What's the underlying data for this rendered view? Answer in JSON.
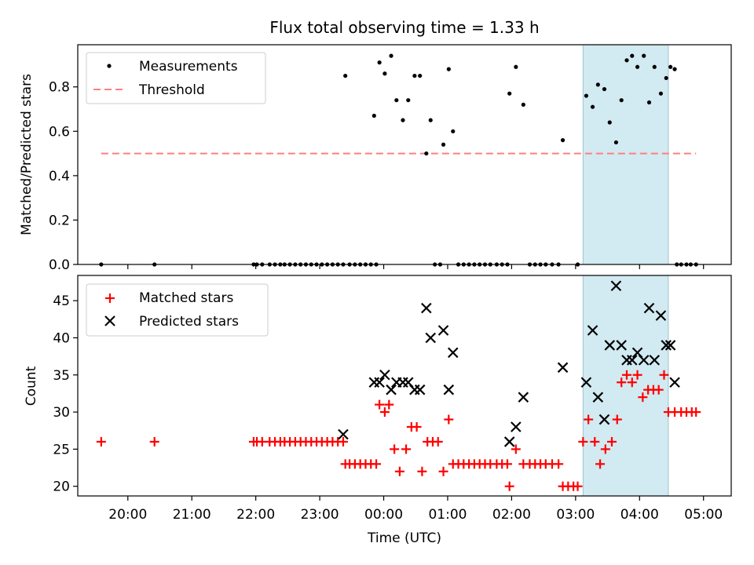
{
  "chart_data": [
    {
      "type": "scatter",
      "title": "Flux total observing time = 1.33 h",
      "ylabel": "Matched/Predicted stars",
      "ylim": [
        0,
        0.99
      ],
      "yticks": [
        "0.0",
        "0.2",
        "0.4",
        "0.6",
        "0.8"
      ],
      "xlim": [
        "19:13",
        "05:26"
      ],
      "highlight": {
        "start": "03:07",
        "end": "04:27",
        "color": "#add8e6"
      },
      "legend": {
        "position": "top-left",
        "entries": [
          {
            "label": "Measurements",
            "marker": "dot",
            "color": "#000000"
          },
          {
            "label": "Threshold",
            "marker": "dashed-line",
            "color": "#ff7f7f"
          }
        ]
      },
      "threshold": {
        "y": 0.5,
        "x": [
          "19:35",
          "04:53"
        ]
      },
      "series": [
        {
          "name": "Measurements",
          "points": [
            [
              "19:35",
              0
            ],
            [
              "20:25",
              0
            ],
            [
              "21:58",
              0
            ],
            [
              "22:01",
              0
            ],
            [
              "22:06",
              0
            ],
            [
              "22:13",
              0
            ],
            [
              "22:18",
              0
            ],
            [
              "22:23",
              0
            ],
            [
              "22:27",
              0
            ],
            [
              "22:32",
              0
            ],
            [
              "22:37",
              0
            ],
            [
              "22:42",
              0
            ],
            [
              "22:47",
              0
            ],
            [
              "22:52",
              0
            ],
            [
              "22:57",
              0
            ],
            [
              "23:02",
              0
            ],
            [
              "23:07",
              0
            ],
            [
              "23:12",
              0
            ],
            [
              "23:17",
              0
            ],
            [
              "23:22",
              0
            ],
            [
              "23:24",
              0.85
            ],
            [
              "23:28",
              0
            ],
            [
              "23:33",
              0
            ],
            [
              "23:38",
              0
            ],
            [
              "23:43",
              0
            ],
            [
              "23:48",
              0
            ],
            [
              "23:51",
              0.67
            ],
            [
              "23:53",
              0
            ],
            [
              "23:56",
              0.91
            ],
            [
              "00:01",
              0.86
            ],
            [
              "00:07",
              0.94
            ],
            [
              "00:12",
              0.74
            ],
            [
              "00:18",
              0.65
            ],
            [
              "00:23",
              0.74
            ],
            [
              "00:29",
              0.85
            ],
            [
              "00:34",
              0.85
            ],
            [
              "00:40",
              0.5
            ],
            [
              "00:44",
              0.65
            ],
            [
              "00:48",
              0
            ],
            [
              "00:53",
              0
            ],
            [
              "00:56",
              0.54
            ],
            [
              "01:01",
              0.88
            ],
            [
              "01:05",
              0.6
            ],
            [
              "01:10",
              0
            ],
            [
              "01:15",
              0
            ],
            [
              "01:20",
              0
            ],
            [
              "01:25",
              0
            ],
            [
              "01:30",
              0
            ],
            [
              "01:35",
              0
            ],
            [
              "01:40",
              0
            ],
            [
              "01:46",
              0
            ],
            [
              "01:51",
              0
            ],
            [
              "01:56",
              0
            ],
            [
              "01:58",
              0.77
            ],
            [
              "02:04",
              0.89
            ],
            [
              "02:11",
              0.72
            ],
            [
              "02:17",
              0
            ],
            [
              "02:22",
              0
            ],
            [
              "02:27",
              0
            ],
            [
              "02:32",
              0
            ],
            [
              "02:38",
              0
            ],
            [
              "02:44",
              0
            ],
            [
              "02:48",
              0.56
            ],
            [
              "03:02",
              0
            ],
            [
              "03:10",
              0.76
            ],
            [
              "03:16",
              0.71
            ],
            [
              "03:21",
              0.81
            ],
            [
              "03:27",
              0.79
            ],
            [
              "03:32",
              0.64
            ],
            [
              "03:38",
              0.55
            ],
            [
              "03:43",
              0.74
            ],
            [
              "03:48",
              0.92
            ],
            [
              "03:53",
              0.94
            ],
            [
              "03:58",
              0.89
            ],
            [
              "04:04",
              0.94
            ],
            [
              "04:09",
              0.73
            ],
            [
              "04:14",
              0.89
            ],
            [
              "04:20",
              0.77
            ],
            [
              "04:25",
              0.84
            ],
            [
              "04:29",
              0.89
            ],
            [
              "04:33",
              0.88
            ],
            [
              "04:35",
              0
            ],
            [
              "04:39",
              0
            ],
            [
              "04:44",
              0
            ],
            [
              "04:48",
              0
            ],
            [
              "04:53",
              0
            ]
          ]
        }
      ]
    },
    {
      "type": "scatter",
      "xlabel": "Time (UTC)",
      "ylabel": "Count",
      "ylim": [
        18.7,
        48.4
      ],
      "yticks": [
        "20",
        "25",
        "30",
        "35",
        "40",
        "45"
      ],
      "xticks": [
        "20:00",
        "21:00",
        "22:00",
        "23:00",
        "00:00",
        "01:00",
        "02:00",
        "03:00",
        "04:00",
        "05:00"
      ],
      "xlim": [
        "19:13",
        "05:26"
      ],
      "highlight": {
        "start": "03:07",
        "end": "04:27",
        "color": "#add8e6"
      },
      "legend": {
        "position": "top-left",
        "entries": [
          {
            "label": "Matched stars",
            "marker": "plus",
            "color": "#ff0000"
          },
          {
            "label": "Predicted stars",
            "marker": "x",
            "color": "#000000"
          }
        ]
      },
      "series": [
        {
          "name": "Matched stars",
          "marker": "plus",
          "color": "#ff0000",
          "points": [
            [
              "19:35",
              26
            ],
            [
              "20:25",
              26
            ],
            [
              "21:58",
              26
            ],
            [
              "22:01",
              26
            ],
            [
              "22:06",
              26
            ],
            [
              "22:13",
              26
            ],
            [
              "22:18",
              26
            ],
            [
              "22:23",
              26
            ],
            [
              "22:27",
              26
            ],
            [
              "22:32",
              26
            ],
            [
              "22:37",
              26
            ],
            [
              "22:42",
              26
            ],
            [
              "22:47",
              26
            ],
            [
              "22:52",
              26
            ],
            [
              "22:57",
              26
            ],
            [
              "23:02",
              26
            ],
            [
              "23:07",
              26
            ],
            [
              "23:12",
              26
            ],
            [
              "23:17",
              26
            ],
            [
              "23:22",
              26
            ],
            [
              "23:24",
              23
            ],
            [
              "23:28",
              23
            ],
            [
              "23:33",
              23
            ],
            [
              "23:38",
              23
            ],
            [
              "23:43",
              23
            ],
            [
              "23:48",
              23
            ],
            [
              "23:53",
              23
            ],
            [
              "23:56",
              31
            ],
            [
              "00:01",
              30
            ],
            [
              "00:05",
              31
            ],
            [
              "00:10",
              25
            ],
            [
              "00:15",
              22
            ],
            [
              "00:21",
              25
            ],
            [
              "00:26",
              28
            ],
            [
              "00:31",
              28
            ],
            [
              "00:36",
              22
            ],
            [
              "00:41",
              26
            ],
            [
              "00:46",
              26
            ],
            [
              "00:51",
              26
            ],
            [
              "00:56",
              22
            ],
            [
              "01:01",
              29
            ],
            [
              "01:05",
              23
            ],
            [
              "01:10",
              23
            ],
            [
              "01:15",
              23
            ],
            [
              "01:20",
              23
            ],
            [
              "01:25",
              23
            ],
            [
              "01:30",
              23
            ],
            [
              "01:35",
              23
            ],
            [
              "01:40",
              23
            ],
            [
              "01:46",
              23
            ],
            [
              "01:51",
              23
            ],
            [
              "01:56",
              23
            ],
            [
              "01:58",
              20
            ],
            [
              "02:04",
              25
            ],
            [
              "02:11",
              23
            ],
            [
              "02:17",
              23
            ],
            [
              "02:22",
              23
            ],
            [
              "02:27",
              23
            ],
            [
              "02:32",
              23
            ],
            [
              "02:38",
              23
            ],
            [
              "02:44",
              23
            ],
            [
              "02:48",
              20
            ],
            [
              "02:53",
              20
            ],
            [
              "02:58",
              20
            ],
            [
              "03:02",
              20
            ],
            [
              "03:07",
              26
            ],
            [
              "03:12",
              29
            ],
            [
              "03:18",
              26
            ],
            [
              "03:23",
              23
            ],
            [
              "03:28",
              25
            ],
            [
              "03:34",
              26
            ],
            [
              "03:39",
              29
            ],
            [
              "03:43",
              34
            ],
            [
              "03:48",
              35
            ],
            [
              "03:53",
              34
            ],
            [
              "03:58",
              35
            ],
            [
              "04:03",
              32
            ],
            [
              "04:08",
              33
            ],
            [
              "04:13",
              33
            ],
            [
              "04:18",
              33
            ],
            [
              "04:23",
              35
            ],
            [
              "04:27",
              30
            ],
            [
              "04:33",
              30
            ],
            [
              "04:39",
              30
            ],
            [
              "04:44",
              30
            ],
            [
              "04:49",
              30
            ],
            [
              "04:53",
              30
            ]
          ]
        },
        {
          "name": "Predicted stars",
          "marker": "x",
          "color": "#000000",
          "points": [
            [
              "23:22",
              27
            ],
            [
              "23:51",
              34
            ],
            [
              "23:56",
              34
            ],
            [
              "00:01",
              35
            ],
            [
              "00:07",
              33
            ],
            [
              "00:12",
              34
            ],
            [
              "00:18",
              34
            ],
            [
              "00:23",
              34
            ],
            [
              "00:29",
              33
            ],
            [
              "00:34",
              33
            ],
            [
              "00:40",
              44
            ],
            [
              "00:44",
              40
            ],
            [
              "00:56",
              41
            ],
            [
              "01:01",
              33
            ],
            [
              "01:05",
              38
            ],
            [
              "01:58",
              26
            ],
            [
              "02:04",
              28
            ],
            [
              "02:11",
              32
            ],
            [
              "02:48",
              36
            ],
            [
              "03:10",
              34
            ],
            [
              "03:16",
              41
            ],
            [
              "03:21",
              32
            ],
            [
              "03:27",
              29
            ],
            [
              "03:32",
              39
            ],
            [
              "03:38",
              47
            ],
            [
              "03:43",
              39
            ],
            [
              "03:48",
              37
            ],
            [
              "03:53",
              37
            ],
            [
              "03:58",
              38
            ],
            [
              "04:04",
              37
            ],
            [
              "04:09",
              44
            ],
            [
              "04:14",
              37
            ],
            [
              "04:20",
              43
            ],
            [
              "04:25",
              39
            ],
            [
              "04:29",
              39
            ],
            [
              "04:33",
              34
            ]
          ]
        }
      ]
    }
  ]
}
